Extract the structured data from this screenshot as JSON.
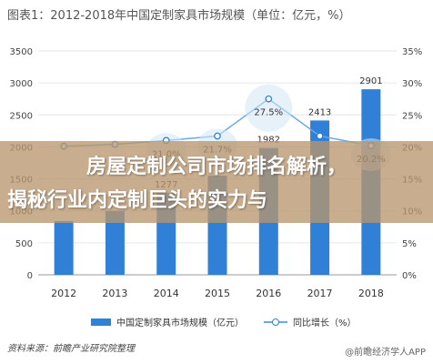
{
  "title": "图表1：2012-2018年中国定制家具市场规模（单位：亿元，%）",
  "overlay": {
    "line1": "房屋定制公司市场排名解析，",
    "line2": "揭秘行业内定制巨头的实力与"
  },
  "source": "资料来源：前瞻产业研究院整理",
  "watermark": "@前瞻经济学人APP",
  "colors": {
    "bar": "#2f80d6",
    "line": "#6aa9e6",
    "overlay": "#b9966e"
  },
  "chart_data": {
    "type": "bar",
    "title": "图表1：2012-2018年中国定制家具市场规模（单位：亿元，%）",
    "categories": [
      "2012",
      "2013",
      "2014",
      "2015",
      "2016",
      "2017",
      "2018"
    ],
    "series": [
      {
        "name": "中国定制家具市场规模（亿元）",
        "type": "bar",
        "axis": "left",
        "values": [
          840,
          1000,
          1277,
          1550,
          1982,
          2413,
          2901
        ],
        "labels": [
          "",
          "",
          "1277",
          "",
          "1982",
          "2413",
          "2901"
        ]
      },
      {
        "name": "同比增长（%）",
        "type": "line",
        "axis": "right",
        "values": [
          20.1,
          20.4,
          21.0,
          21.7,
          27.5,
          21.7,
          20.2
        ],
        "labels": [
          "",
          "",
          "21.0%",
          "21.7%",
          "27.5%",
          "",
          "20.2%"
        ]
      }
    ],
    "left_axis": {
      "min": 0,
      "max": 3500,
      "ticks": [
        "0",
        "500",
        "1000",
        "1500",
        "2000",
        "2500",
        "3000",
        "3500"
      ]
    },
    "right_axis": {
      "min": 0,
      "max": 35,
      "ticks": [
        "0%",
        "5%",
        "10%",
        "15%",
        "20%",
        "25%",
        "30%",
        "35%"
      ]
    },
    "grid": true,
    "legend": "bottom"
  }
}
